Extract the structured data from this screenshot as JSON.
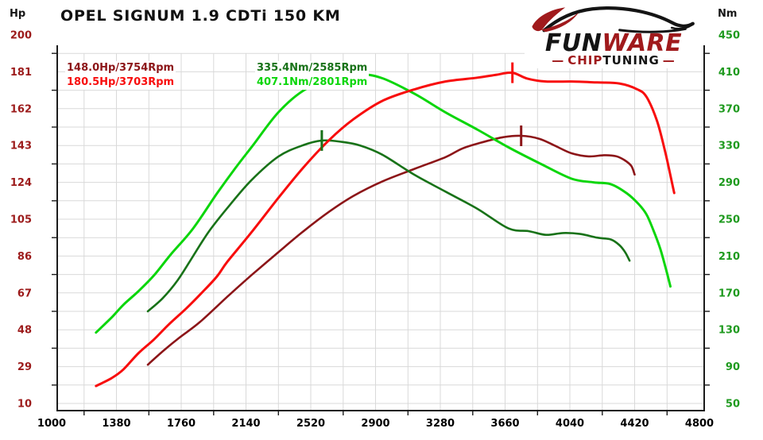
{
  "header": {
    "title": "OPEL SIGNUM 1.9 CDTi 150 KM"
  },
  "logo": {
    "fun": "FUN",
    "ware": "WARE",
    "chip": "CHIP",
    "tuning": "TUNING",
    "dash_left": "—",
    "dash_right": "—",
    "black": "#141414",
    "red": "#a01a1c"
  },
  "legend": {
    "entries": [
      {
        "text": "148.0Hp/3754Rpm",
        "color": "#8c1518"
      },
      {
        "text": "180.5Hp/3703Rpm",
        "color": "#f80d0d"
      },
      {
        "text": "335.4Nm/2585Rpm",
        "color": "#187218"
      },
      {
        "text": "407.1Nm/2801Rpm",
        "color": "#0bd60b"
      }
    ]
  },
  "chart_data": {
    "type": "line",
    "title": "OPEL SIGNUM 1.9 CDTi 150 KM",
    "x_range": [
      1000,
      4800
    ],
    "x_ticks": [
      1000,
      1380,
      1760,
      2140,
      2520,
      2900,
      3280,
      3660,
      4040,
      4420,
      4800
    ],
    "x_label_color": "#000000",
    "grid": true,
    "grid_color": "#d9d9d9",
    "axis_color": "#1b1b1b",
    "y_left": {
      "unit": "Hp",
      "range": [
        10,
        200
      ],
      "ticks": [
        200,
        181,
        162,
        143,
        124,
        105,
        86,
        67,
        48,
        29,
        10
      ],
      "label_color": "#9c1b1b"
    },
    "y_right": {
      "unit": "Nm",
      "range": [
        50,
        450
      ],
      "ticks": [
        450,
        410,
        370,
        330,
        290,
        250,
        210,
        170,
        130,
        90,
        50
      ],
      "label_color": "#1f9a1f"
    },
    "series": [
      {
        "id": "stock_power",
        "label": "148.0Hp/3754Rpm",
        "axis": "hp",
        "color": "#8c1518",
        "width": 2.6,
        "peak": {
          "rpm": 3754,
          "value": 148.0
        },
        "points": [
          [
            1564,
            30
          ],
          [
            1660,
            37.5
          ],
          [
            1750,
            44
          ],
          [
            1870,
            52
          ],
          [
            2030,
            65
          ],
          [
            2170,
            76
          ],
          [
            2330,
            88
          ],
          [
            2480,
            99
          ],
          [
            2630,
            109
          ],
          [
            2770,
            117
          ],
          [
            2940,
            124.5
          ],
          [
            3130,
            131
          ],
          [
            3310,
            137
          ],
          [
            3410,
            141.5
          ],
          [
            3520,
            144.5
          ],
          [
            3650,
            147.3
          ],
          [
            3754,
            148
          ],
          [
            3860,
            146.5
          ],
          [
            3950,
            143
          ],
          [
            4050,
            139
          ],
          [
            4150,
            137.4
          ],
          [
            4240,
            138
          ],
          [
            4310,
            137.5
          ],
          [
            4360,
            135.5
          ],
          [
            4400,
            132.5
          ],
          [
            4420,
            128
          ]
        ]
      },
      {
        "id": "stock_torque",
        "label": "335.4Nm/2585Rpm",
        "axis": "nm",
        "color": "#187218",
        "width": 2.6,
        "peak": {
          "rpm": 2585,
          "value": 335.4
        },
        "points": [
          [
            1564,
            150
          ],
          [
            1650,
            164
          ],
          [
            1740,
            184
          ],
          [
            1830,
            210
          ],
          [
            1920,
            236
          ],
          [
            2030,
            262
          ],
          [
            2170,
            292
          ],
          [
            2330,
            318
          ],
          [
            2470,
            330
          ],
          [
            2585,
            335.4
          ],
          [
            2700,
            334
          ],
          [
            2810,
            330
          ],
          [
            2940,
            320
          ],
          [
            3130,
            298
          ],
          [
            3310,
            280
          ],
          [
            3500,
            261
          ],
          [
            3680,
            240
          ],
          [
            3800,
            237
          ],
          [
            3900,
            233
          ],
          [
            4000,
            235
          ],
          [
            4100,
            234
          ],
          [
            4200,
            230
          ],
          [
            4280,
            228
          ],
          [
            4330,
            222
          ],
          [
            4365,
            214
          ],
          [
            4390,
            205
          ]
        ]
      },
      {
        "id": "tuned_torque",
        "label": "407.1Nm/2801Rpm",
        "axis": "nm",
        "color": "#0bd60b",
        "width": 3,
        "peak": {
          "rpm": 2801,
          "value": 407.1
        },
        "points": [
          [
            1260,
            127
          ],
          [
            1350,
            143
          ],
          [
            1420,
            157
          ],
          [
            1510,
            172
          ],
          [
            1600,
            189
          ],
          [
            1700,
            212
          ],
          [
            1830,
            240
          ],
          [
            1970,
            278
          ],
          [
            2080,
            306
          ],
          [
            2180,
            330
          ],
          [
            2330,
            366
          ],
          [
            2480,
            390
          ],
          [
            2630,
            401
          ],
          [
            2801,
            407.1
          ],
          [
            2940,
            403
          ],
          [
            3130,
            386
          ],
          [
            3310,
            366
          ],
          [
            3500,
            347
          ],
          [
            3680,
            328
          ],
          [
            3870,
            310
          ],
          [
            4050,
            294
          ],
          [
            4180,
            290
          ],
          [
            4280,
            288
          ],
          [
            4375,
            278
          ],
          [
            4445,
            266
          ],
          [
            4490,
            255
          ],
          [
            4530,
            238
          ],
          [
            4570,
            218
          ],
          [
            4605,
            195
          ],
          [
            4630,
            177
          ]
        ]
      },
      {
        "id": "tuned_power",
        "label": "180.5Hp/3703Rpm",
        "axis": "hp",
        "color": "#f80d0d",
        "width": 3,
        "peak": {
          "rpm": 3703,
          "value": 180.5
        },
        "points": [
          [
            1260,
            19
          ],
          [
            1350,
            23
          ],
          [
            1420,
            27.5
          ],
          [
            1510,
            36
          ],
          [
            1600,
            43
          ],
          [
            1690,
            51
          ],
          [
            1790,
            59
          ],
          [
            1880,
            67
          ],
          [
            1970,
            75.5
          ],
          [
            2030,
            83
          ],
          [
            2170,
            98
          ],
          [
            2330,
            116
          ],
          [
            2480,
            132
          ],
          [
            2630,
            146
          ],
          [
            2770,
            156.5
          ],
          [
            2940,
            166
          ],
          [
            3130,
            172
          ],
          [
            3310,
            176
          ],
          [
            3500,
            178
          ],
          [
            3610,
            179.5
          ],
          [
            3703,
            180.5
          ],
          [
            3790,
            177.5
          ],
          [
            3900,
            176
          ],
          [
            4050,
            176
          ],
          [
            4200,
            175.5
          ],
          [
            4330,
            175
          ],
          [
            4435,
            172
          ],
          [
            4490,
            168
          ],
          [
            4550,
            156
          ],
          [
            4596,
            141
          ],
          [
            4629,
            128
          ],
          [
            4652,
            118.5
          ]
        ]
      }
    ]
  }
}
